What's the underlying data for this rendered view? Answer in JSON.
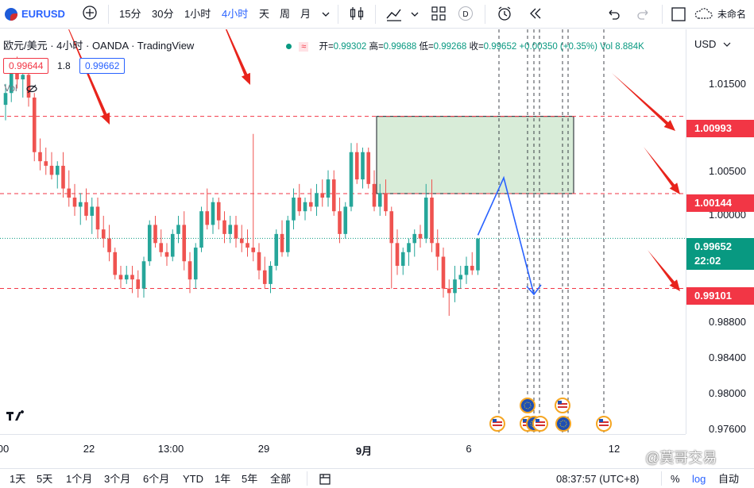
{
  "toolbar": {
    "symbol": "EURUSD",
    "intervals": [
      "15分",
      "30分",
      "1小时",
      "4小时",
      "天",
      "周",
      "月"
    ],
    "active_interval": "4小时",
    "layout_name": "未命名"
  },
  "legend": {
    "title": "欧元/美元 · 4小时 · OANDA · TradingView",
    "bid": "0.99644",
    "spread": "1.8",
    "ask": "0.99662",
    "vol_label": "Vol",
    "ohlc": {
      "open_label": "开=",
      "open": "0.99302",
      "high_label": "高=",
      "high": "0.99688",
      "low_label": "低=",
      "low": "0.99268",
      "close_label": "收=",
      "close": "0.99652",
      "change": "+0.00350 (+0.35%)",
      "vol": "Vol 8.884K"
    }
  },
  "price_axis": {
    "currency": "USD",
    "tick_labels": [
      "1.01500",
      "1.00500",
      "1.00000",
      "0.98800",
      "0.98400",
      "0.98000",
      "0.97600"
    ],
    "tags": [
      {
        "label": "1.00993",
        "color": "#f23645"
      },
      {
        "label": "1.00144",
        "color": "#f23645"
      },
      {
        "label": "0.99101",
        "color": "#f23645"
      }
    ],
    "current_price": "0.99652",
    "countdown": "22:02",
    "current_color": "#089981"
  },
  "time_axis": {
    "labels": [
      "00",
      "22",
      "13:00",
      "29",
      "9月",
      "6",
      "12"
    ]
  },
  "bottom_bar": {
    "ranges": [
      "1天",
      "5天",
      "1个月",
      "3个月",
      "6个月",
      "YTD",
      "1年",
      "5年",
      "全部"
    ],
    "clock": "08:37:57 (UTC+8)",
    "percent": "%",
    "log": "log",
    "auto": "自动"
  },
  "watermark": "@莫哥交易",
  "chart_data": {
    "type": "candlestick",
    "symbol": "EURUSD",
    "interval": "4小时",
    "source": "OANDA",
    "ylim": [
      0.975,
      1.0195
    ],
    "x_labels": [
      "00",
      "22",
      "13:00",
      "29",
      "9月",
      "6",
      "12"
    ],
    "horizontal_levels": [
      1.00993,
      1.00144,
      0.99101
    ],
    "resistance_zone": {
      "from": 1.00144,
      "to": 1.00993
    },
    "last_price": 0.99652,
    "candles": [
      [
        1.0112,
        1.0135,
        1.0095,
        1.0125
      ],
      [
        1.0125,
        1.016,
        1.0115,
        1.015
      ],
      [
        1.015,
        1.0165,
        1.013,
        1.014
      ],
      [
        1.014,
        1.015,
        1.012,
        1.0145
      ],
      [
        1.0145,
        1.016,
        1.011,
        1.012
      ],
      [
        1.012,
        1.0125,
        1.005,
        1.006
      ],
      [
        1.006,
        1.0075,
        1.004,
        1.005
      ],
      [
        1.005,
        1.0065,
        1.0035,
        1.0045
      ],
      [
        1.0045,
        1.006,
        1.003,
        1.0035
      ],
      [
        1.0035,
        1.005,
        1.002,
        1.0045
      ],
      [
        1.0045,
        1.006,
        1.001,
        1.002
      ],
      [
        1.002,
        1.004,
        1.0,
        1.001
      ],
      [
        1.001,
        1.0025,
        0.999,
        1.0
      ],
      [
        1.0,
        1.0015,
        0.998,
        1.0005
      ],
      [
        1.0005,
        1.002,
        0.9985,
        0.999
      ],
      [
        0.999,
        1.001,
        0.997,
        1.0
      ],
      [
        1.0,
        1.001,
        0.9965,
        0.9975
      ],
      [
        0.9975,
        0.999,
        0.9955,
        0.9965
      ],
      [
        0.9965,
        0.998,
        0.994,
        0.995
      ],
      [
        0.995,
        0.9955,
        0.992,
        0.9925
      ],
      [
        0.9925,
        0.9935,
        0.991,
        0.992
      ],
      [
        0.992,
        0.9935,
        0.9915,
        0.9925
      ],
      [
        0.9925,
        0.9935,
        0.9905,
        0.992
      ],
      [
        0.992,
        0.993,
        0.99,
        0.991
      ],
      [
        0.991,
        0.9945,
        0.99,
        0.994
      ],
      [
        0.994,
        0.9985,
        0.9935,
        0.998
      ],
      [
        0.998,
        0.999,
        0.9955,
        0.996
      ],
      [
        0.996,
        0.9975,
        0.9945,
        0.995
      ],
      [
        0.995,
        0.996,
        0.9935,
        0.9945
      ],
      [
        0.9945,
        0.9975,
        0.994,
        0.997
      ],
      [
        0.997,
        0.999,
        0.996,
        0.998
      ],
      [
        0.998,
        0.9995,
        0.993,
        0.994
      ],
      [
        0.994,
        0.995,
        0.9905,
        0.992
      ],
      [
        0.992,
        0.996,
        0.991,
        0.9955
      ],
      [
        0.9955,
        1.0,
        0.995,
        0.9995
      ],
      [
        0.9995,
        1.002,
        0.9975,
        0.998
      ],
      [
        0.998,
        1.001,
        0.997,
        1.0005
      ],
      [
        1.0005,
        1.001,
        0.9975,
        0.9985
      ],
      [
        0.9985,
        0.9995,
        0.996,
        0.997
      ],
      [
        0.997,
        0.999,
        0.996,
        0.998
      ],
      [
        0.998,
        0.999,
        0.9955,
        0.9965
      ],
      [
        0.9965,
        0.998,
        0.995,
        0.996
      ],
      [
        0.996,
        0.9975,
        0.9945,
        0.9955
      ],
      [
        0.9955,
        1.008,
        0.994,
        0.995
      ],
      [
        0.995,
        0.996,
        0.992,
        0.993
      ],
      [
        0.993,
        0.9945,
        0.991,
        0.9915
      ],
      [
        0.9915,
        0.994,
        0.9905,
        0.9935
      ],
      [
        0.9935,
        0.9975,
        0.993,
        0.997
      ],
      [
        0.997,
        0.9985,
        0.9945,
        0.995
      ],
      [
        0.995,
        0.999,
        0.9945,
        0.9985
      ],
      [
        0.9985,
        1.002,
        0.9975,
        1.001
      ],
      [
        1.001,
        1.0025,
        0.999,
        0.9995
      ],
      [
        0.9995,
        1.001,
        0.9985,
        1.0005
      ],
      [
        1.0005,
        1.002,
        0.9995,
        1.0
      ],
      [
        1.0,
        1.0025,
        0.999,
        1.0015
      ],
      [
        1.0015,
        1.003,
        1.0,
        1.001
      ],
      [
        1.001,
        1.004,
        1.0,
        1.003
      ],
      [
        1.003,
        1.004,
        0.999,
        0.9995
      ],
      [
        0.9995,
        1.001,
        0.996,
        0.997
      ],
      [
        0.997,
        1.0005,
        0.9965,
        1.0
      ],
      [
        1.0,
        1.007,
        0.9995,
        1.006
      ],
      [
        1.006,
        1.007,
        1.0025,
        1.003
      ],
      [
        1.003,
        1.0065,
        1.002,
        1.006
      ],
      [
        1.006,
        1.0065,
        1.002,
        1.0025
      ],
      [
        1.0025,
        1.004,
        0.9995,
        1.0
      ],
      [
        1.0,
        1.0025,
        0.999,
        1.0015
      ],
      [
        1.0015,
        1.003,
        0.999,
        0.9995
      ],
      [
        0.9995,
        1.0,
        0.991,
        0.996
      ],
      [
        0.996,
        0.9975,
        0.9925,
        0.9935
      ],
      [
        0.9935,
        0.9955,
        0.9925,
        0.995
      ],
      [
        0.995,
        0.9965,
        0.9935,
        0.996
      ],
      [
        0.996,
        0.9975,
        0.9945,
        0.997
      ],
      [
        0.997,
        0.998,
        0.9955,
        0.9965
      ],
      [
        0.9965,
        1.0025,
        0.996,
        1.001
      ],
      [
        1.001,
        1.003,
        0.995,
        0.996
      ],
      [
        0.996,
        0.9975,
        0.993,
        0.9945
      ],
      [
        0.9945,
        0.9955,
        0.99,
        0.991
      ],
      [
        0.991,
        0.992,
        0.988,
        0.9905
      ],
      [
        0.9905,
        0.9935,
        0.9895,
        0.992
      ],
      [
        0.992,
        0.9935,
        0.991,
        0.9925
      ],
      [
        0.9925,
        0.9945,
        0.9915,
        0.9935
      ],
      [
        0.9935,
        0.995,
        0.9925,
        0.993
      ],
      [
        0.993,
        0.9965,
        0.9925,
        0.9965
      ]
    ]
  }
}
